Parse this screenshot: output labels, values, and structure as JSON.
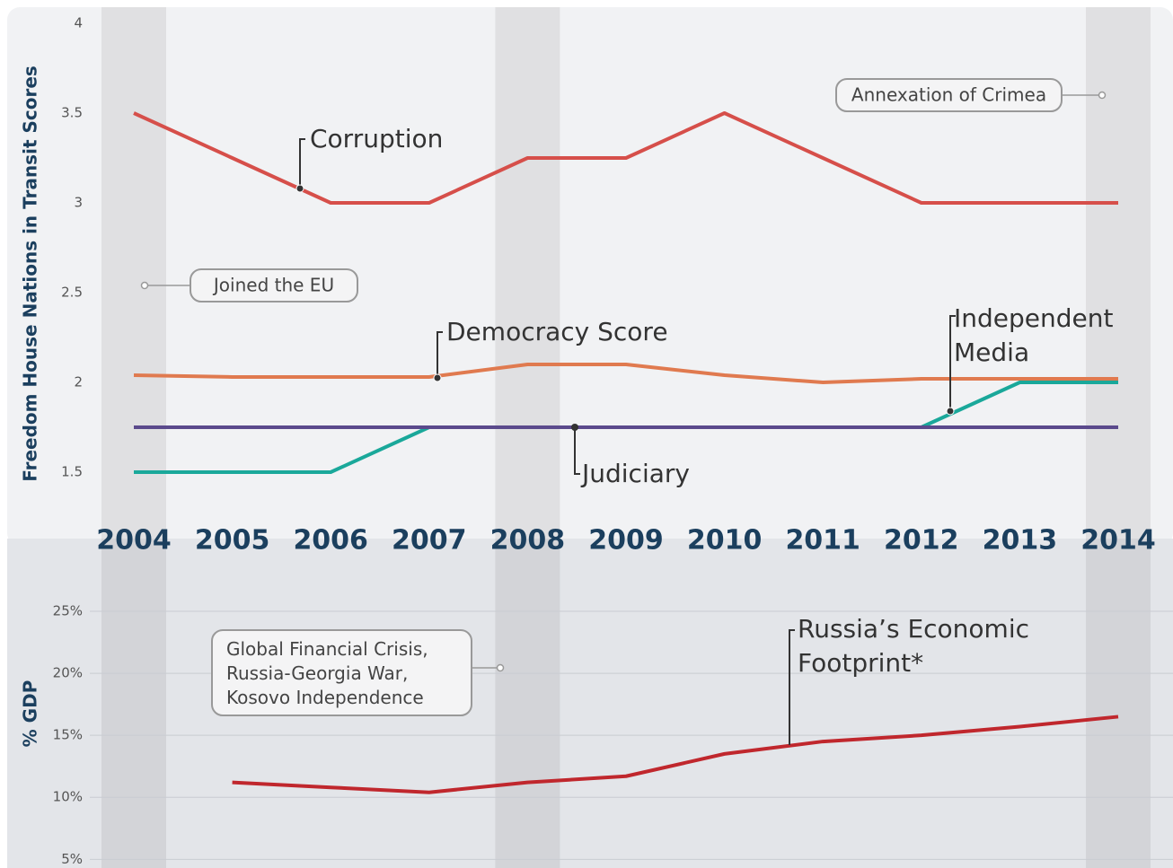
{
  "chart_data": [
    {
      "type": "line",
      "y_label": "Freedom House Nations in Transit Scores",
      "categories": [
        "2004",
        "2005",
        "2006",
        "2007",
        "2008",
        "2009",
        "2010",
        "2011",
        "2012",
        "2013",
        "2014"
      ],
      "series": [
        {
          "name": "Corruption",
          "color": "#d64f4a",
          "values": [
            3.5,
            3.25,
            3.0,
            3.0,
            3.25,
            3.25,
            3.5,
            3.25,
            3.0,
            3.0,
            3.0
          ]
        },
        {
          "name": "Democracy Score",
          "color": "#e07a4f",
          "values": [
            2.04,
            2.03,
            2.03,
            2.03,
            2.1,
            2.1,
            2.04,
            2.0,
            2.02,
            2.02,
            2.02
          ]
        },
        {
          "name": "Independent Media",
          "color": "#1aa89a",
          "values": [
            1.5,
            1.5,
            1.5,
            1.75,
            1.75,
            1.75,
            1.75,
            1.75,
            1.75,
            2.0,
            2.0
          ]
        },
        {
          "name": "Judiciary",
          "color": "#5b4a8c",
          "values": [
            1.75,
            1.75,
            1.75,
            1.75,
            1.75,
            1.75,
            1.75,
            1.75,
            1.75,
            1.75,
            1.75
          ]
        }
      ],
      "ylim": [
        1.2,
        4
      ],
      "yticks": [
        1.5,
        2,
        2.5,
        3,
        3.5,
        4
      ],
      "grid": false,
      "highlight": [
        0,
        4,
        10
      ],
      "annotations": [
        "Annexation of Crimea",
        "Joined the EU"
      ]
    },
    {
      "type": "line",
      "y_label": "% GDP",
      "series": [
        {
          "name": "Russia’s Economic Footprint*",
          "color": "#c0272d",
          "values": [
            null,
            11.2,
            10.8,
            10.4,
            11.2,
            11.7,
            13.5,
            14.5,
            15.0,
            15.7,
            16.5
          ]
        }
      ],
      "ylim": [
        4.3,
        30.5
      ],
      "yticks": [
        {
          "value": 5,
          "label": "5%"
        },
        {
          "value": 10,
          "label": "10%"
        },
        {
          "value": 15,
          "label": "15%"
        },
        {
          "value": 20,
          "label": "20%"
        },
        {
          "value": 25,
          "label": "25%"
        }
      ],
      "grid": true,
      "annotations": [
        "Global Financial Crisis,\nRussia-Georgia War,\nKosovo Independence"
      ]
    }
  ]
}
